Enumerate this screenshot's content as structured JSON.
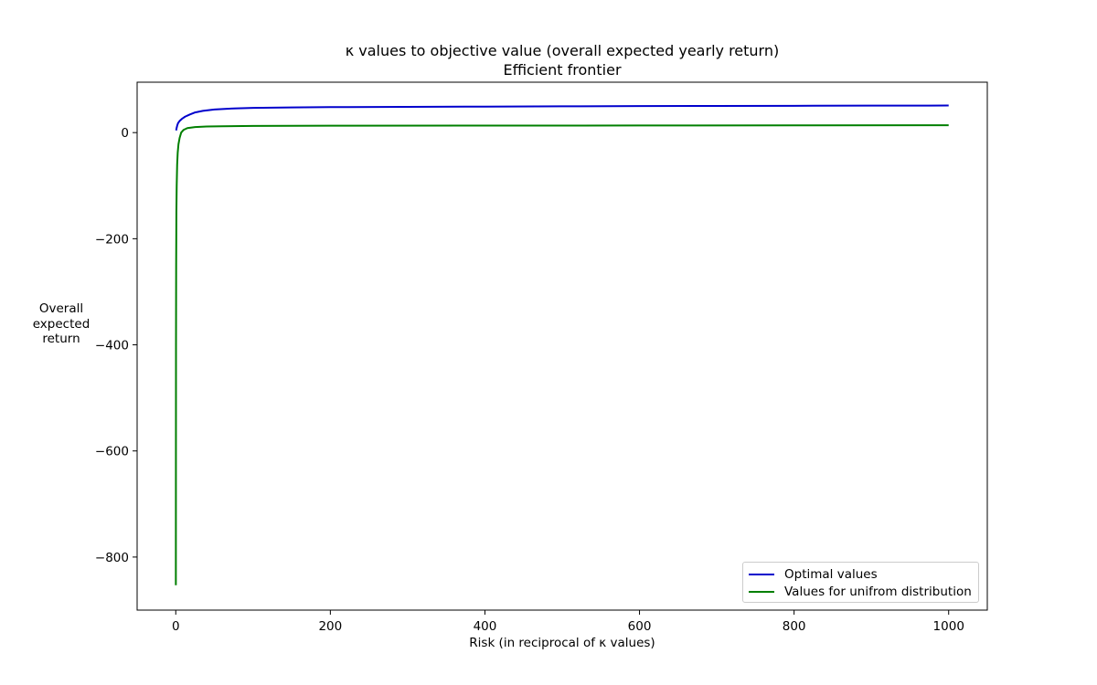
{
  "chart_data": {
    "type": "line",
    "title": "κ values to objective value (overall expected yearly return)",
    "subtitle": "Efficient frontier",
    "xlabel": "Risk (in reciprocal of κ values)",
    "ylabel_lines": [
      "Overall",
      "expected",
      "return"
    ],
    "xlim": [
      -50,
      1050
    ],
    "ylim": [
      -900,
      95
    ],
    "x_ticks": [
      0,
      200,
      400,
      600,
      800,
      1000
    ],
    "y_ticks": [
      0,
      -200,
      -400,
      -600,
      -800
    ],
    "x_tick_labels": [
      "0",
      "200",
      "400",
      "600",
      "800",
      "1000"
    ],
    "y_tick_labels": [
      "0",
      "−200",
      "−400",
      "−600",
      "−800"
    ],
    "grid": false,
    "legend_position": "lower-right",
    "series": [
      {
        "name": "Optimal values",
        "color": "#0000cc",
        "x": [
          0.5,
          1,
          2,
          3,
          5,
          8,
          12,
          18,
          25,
          35,
          50,
          75,
          100,
          150,
          200,
          300,
          400,
          500,
          600,
          700,
          800,
          900,
          1000
        ],
        "y": [
          4,
          8,
          14,
          18,
          22,
          26,
          30,
          34,
          38,
          41,
          43.5,
          45.5,
          46.5,
          47.5,
          48,
          48.5,
          49,
          49.5,
          50,
          50.2,
          50.5,
          50.8,
          51
        ]
      },
      {
        "name": "Values for unifrom distribution",
        "color": "#007f00",
        "x": [
          0.1,
          0.2,
          0.3,
          0.5,
          0.8,
          1.2,
          1.8,
          2.5,
          3.5,
          5,
          7,
          10,
          15,
          25,
          40,
          60,
          100,
          200,
          400,
          600,
          800,
          1000
        ],
        "y": [
          -853,
          -600,
          -400,
          -250,
          -150,
          -100,
          -60,
          -38,
          -22,
          -10,
          0,
          5,
          8.5,
          10.5,
          11.5,
          12,
          12.5,
          13,
          13.2,
          13.4,
          13.6,
          13.8
        ]
      }
    ]
  }
}
